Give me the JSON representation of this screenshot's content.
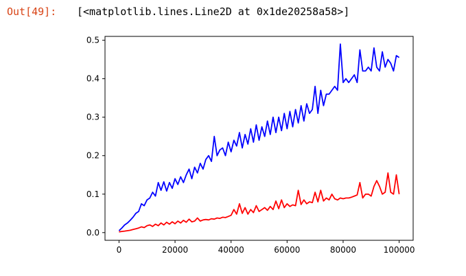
{
  "cell": {
    "prompt": "Out[49]:",
    "output_text": "[<matplotlib.lines.Line2D at 0x1de20258a58>]"
  },
  "chart_data": {
    "type": "line",
    "title": "",
    "xlabel": "",
    "ylabel": "",
    "xlim": [
      -5000,
      105000
    ],
    "ylim": [
      -0.02,
      0.51
    ],
    "xticks": [
      0,
      20000,
      40000,
      60000,
      80000,
      100000
    ],
    "yticks": [
      0.0,
      0.1,
      0.2,
      0.3,
      0.4,
      0.5
    ],
    "xtick_labels": [
      "0",
      "20000",
      "40000",
      "60000",
      "80000",
      "100000"
    ],
    "ytick_labels": [
      "0.0",
      "0.1",
      "0.2",
      "0.3",
      "0.4",
      "0.5"
    ],
    "grid": false,
    "legend": "none",
    "series": [
      {
        "color": "#0000ff",
        "x": [
          0,
          1000,
          2000,
          3000,
          4000,
          5000,
          6000,
          7000,
          8000,
          9000,
          10000,
          11000,
          12000,
          13000,
          14000,
          15000,
          16000,
          17000,
          18000,
          19000,
          20000,
          21000,
          22000,
          23000,
          24000,
          25000,
          26000,
          27000,
          28000,
          29000,
          30000,
          31000,
          32000,
          33000,
          34000,
          35000,
          36000,
          37000,
          38000,
          39000,
          40000,
          41000,
          42000,
          43000,
          44000,
          45000,
          46000,
          47000,
          48000,
          49000,
          50000,
          51000,
          52000,
          53000,
          54000,
          55000,
          56000,
          57000,
          58000,
          59000,
          60000,
          61000,
          62000,
          63000,
          64000,
          65000,
          66000,
          67000,
          68000,
          69000,
          70000,
          71000,
          72000,
          73000,
          74000,
          75000,
          76000,
          77000,
          78000,
          79000,
          80000,
          81000,
          82000,
          83000,
          84000,
          85000,
          86000,
          87000,
          88000,
          89000,
          90000,
          91000,
          92000,
          93000,
          94000,
          95000,
          96000,
          97000,
          98000,
          99000,
          100000
        ],
        "y": [
          0.005,
          0.012,
          0.02,
          0.025,
          0.032,
          0.04,
          0.05,
          0.055,
          0.075,
          0.07,
          0.085,
          0.09,
          0.105,
          0.095,
          0.13,
          0.11,
          0.132,
          0.108,
          0.13,
          0.115,
          0.14,
          0.125,
          0.145,
          0.13,
          0.15,
          0.165,
          0.14,
          0.17,
          0.155,
          0.18,
          0.165,
          0.19,
          0.2,
          0.185,
          0.25,
          0.2,
          0.215,
          0.22,
          0.2,
          0.235,
          0.21,
          0.24,
          0.225,
          0.26,
          0.22,
          0.255,
          0.23,
          0.27,
          0.235,
          0.28,
          0.24,
          0.275,
          0.25,
          0.29,
          0.255,
          0.3,
          0.26,
          0.3,
          0.265,
          0.31,
          0.27,
          0.315,
          0.275,
          0.32,
          0.285,
          0.33,
          0.29,
          0.335,
          0.31,
          0.32,
          0.38,
          0.31,
          0.37,
          0.33,
          0.36,
          0.36,
          0.37,
          0.38,
          0.37,
          0.49,
          0.39,
          0.4,
          0.39,
          0.4,
          0.41,
          0.39,
          0.475,
          0.42,
          0.42,
          0.43,
          0.42,
          0.48,
          0.43,
          0.42,
          0.47,
          0.43,
          0.45,
          0.44,
          0.42,
          0.46,
          0.455
        ]
      },
      {
        "color": "#ff0000",
        "x": [
          0,
          1000,
          2000,
          3000,
          4000,
          5000,
          6000,
          7000,
          8000,
          9000,
          10000,
          11000,
          12000,
          13000,
          14000,
          15000,
          16000,
          17000,
          18000,
          19000,
          20000,
          21000,
          22000,
          23000,
          24000,
          25000,
          26000,
          27000,
          28000,
          29000,
          30000,
          31000,
          32000,
          33000,
          34000,
          35000,
          36000,
          37000,
          38000,
          39000,
          40000,
          41000,
          42000,
          43000,
          44000,
          45000,
          46000,
          47000,
          48000,
          49000,
          50000,
          51000,
          52000,
          53000,
          54000,
          55000,
          56000,
          57000,
          58000,
          59000,
          60000,
          61000,
          62000,
          63000,
          64000,
          65000,
          66000,
          67000,
          68000,
          69000,
          70000,
          71000,
          72000,
          73000,
          74000,
          75000,
          76000,
          77000,
          78000,
          79000,
          80000,
          81000,
          82000,
          83000,
          84000,
          85000,
          86000,
          87000,
          88000,
          89000,
          90000,
          91000,
          92000,
          93000,
          94000,
          95000,
          96000,
          97000,
          98000,
          99000,
          100000
        ],
        "y": [
          0.002,
          0.003,
          0.004,
          0.005,
          0.006,
          0.008,
          0.01,
          0.012,
          0.015,
          0.013,
          0.018,
          0.02,
          0.016,
          0.022,
          0.018,
          0.025,
          0.02,
          0.027,
          0.022,
          0.028,
          0.023,
          0.03,
          0.025,
          0.032,
          0.027,
          0.035,
          0.028,
          0.03,
          0.038,
          0.03,
          0.033,
          0.034,
          0.033,
          0.036,
          0.035,
          0.038,
          0.037,
          0.04,
          0.039,
          0.042,
          0.045,
          0.06,
          0.048,
          0.075,
          0.05,
          0.065,
          0.048,
          0.06,
          0.052,
          0.07,
          0.055,
          0.06,
          0.065,
          0.058,
          0.068,
          0.06,
          0.082,
          0.062,
          0.085,
          0.065,
          0.075,
          0.068,
          0.072,
          0.07,
          0.11,
          0.073,
          0.085,
          0.075,
          0.08,
          0.078,
          0.105,
          0.08,
          0.11,
          0.082,
          0.09,
          0.085,
          0.1,
          0.088,
          0.085,
          0.09,
          0.088,
          0.09,
          0.09,
          0.092,
          0.095,
          0.098,
          0.13,
          0.09,
          0.1,
          0.1,
          0.095,
          0.12,
          0.135,
          0.12,
          0.1,
          0.105,
          0.155,
          0.105,
          0.1,
          0.15,
          0.1
        ]
      }
    ]
  }
}
